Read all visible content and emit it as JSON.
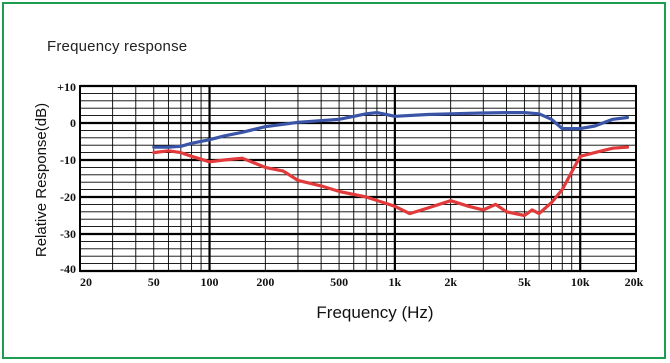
{
  "title": "Frequency response",
  "colors": {
    "border": "#1e9c4f",
    "blue": "#3a55a8",
    "red": "#e23a3a"
  },
  "chart_data": {
    "type": "line",
    "title": "Frequency response",
    "xlabel": "Frequency (Hz)",
    "ylabel": "Relative Response(dB)",
    "xscale": "log",
    "xlim": [
      20,
      20000
    ],
    "ylim": [
      -40,
      10
    ],
    "grid": true,
    "xticks": [
      {
        "v": 20,
        "label": "20"
      },
      {
        "v": 50,
        "label": "50"
      },
      {
        "v": 100,
        "label": "100"
      },
      {
        "v": 200,
        "label": "200"
      },
      {
        "v": 500,
        "label": "500"
      },
      {
        "v": 1000,
        "label": "1k"
      },
      {
        "v": 2000,
        "label": "2k"
      },
      {
        "v": 5000,
        "label": "5k"
      },
      {
        "v": 10000,
        "label": "10k"
      },
      {
        "v": 20000,
        "label": "20k"
      }
    ],
    "yticks": [
      {
        "v": 10,
        "label": "+10"
      },
      {
        "v": 0,
        "label": "0"
      },
      {
        "v": -10,
        "label": "-10"
      },
      {
        "v": -20,
        "label": "-20"
      },
      {
        "v": -30,
        "label": "-30"
      },
      {
        "v": -40,
        "label": "-40"
      }
    ],
    "series": [
      {
        "color": "#3a55a8",
        "x": [
          50,
          60,
          70,
          80,
          100,
          120,
          150,
          200,
          300,
          500,
          700,
          800,
          1000,
          1500,
          2000,
          3000,
          4000,
          5000,
          6000,
          7000,
          8000,
          10000,
          12000,
          15000,
          18000
        ],
        "y": [
          -6.5,
          -6.5,
          -6.3,
          -5.5,
          -4.5,
          -3.5,
          -2.5,
          -1.0,
          0.2,
          1.0,
          2.5,
          2.8,
          1.8,
          2.3,
          2.5,
          2.7,
          2.8,
          2.8,
          2.5,
          1.0,
          -1.5,
          -1.5,
          -0.8,
          1.0,
          1.5
        ]
      },
      {
        "color": "#e23a3a",
        "x": [
          50,
          60,
          70,
          80,
          100,
          120,
          150,
          200,
          250,
          300,
          400,
          500,
          700,
          1000,
          1200,
          1500,
          2000,
          2500,
          3000,
          3500,
          4000,
          5000,
          5500,
          6000,
          7000,
          8000,
          10000,
          12000,
          15000,
          18000
        ],
        "y": [
          -8,
          -7.5,
          -8,
          -9,
          -10.5,
          -10,
          -9.5,
          -12,
          -13,
          -15.5,
          -17,
          -18.5,
          -20,
          -22.5,
          -24.5,
          -23,
          -21,
          -22.5,
          -23.5,
          -22,
          -24,
          -25,
          -23.5,
          -24.5,
          -21.5,
          -18,
          -9,
          -8,
          -6.8,
          -6.5
        ]
      }
    ]
  }
}
